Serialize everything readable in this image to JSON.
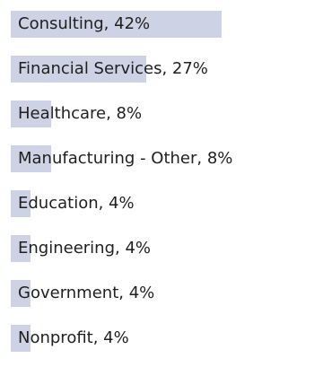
{
  "chart_data": {
    "type": "bar",
    "orientation": "horizontal",
    "categories": [
      "Consulting",
      "Financial Services",
      "Healthcare",
      "Manufacturing - Other",
      "Education",
      "Engineering",
      "Government",
      "Nonprofit"
    ],
    "values": [
      42,
      27,
      8,
      8,
      4,
      4,
      4,
      4
    ],
    "unit": "%",
    "data_labels": [
      "Consulting, 42%",
      "Financial Services, 27%",
      "Healthcare, 8%",
      "Manufacturing - Other, 8%",
      "Education, 4%",
      "Engineering, 4%",
      "Government, 4%",
      "Nonprofit, 4%"
    ],
    "xlim": [
      0,
      42
    ],
    "bar_color": "#cdd3e4",
    "grid": false,
    "legend": "none"
  }
}
